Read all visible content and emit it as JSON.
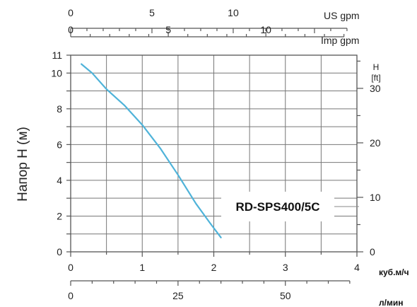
{
  "chart_data": {
    "type": "line",
    "ylabel": "Напор H (м)",
    "ylim": [
      0,
      11
    ],
    "yticks": [
      "0",
      "2",
      "4",
      "6",
      "8",
      "10"
    ],
    "y_top_label": "11",
    "xlim": [
      0,
      4
    ],
    "xticks": [
      "0",
      "1",
      "2",
      "3",
      "4"
    ],
    "x_unit": "куб.м/ч",
    "secondary_x_lpm": {
      "ticks": [
        "0",
        "25",
        "50"
      ],
      "values": [
        0,
        25,
        50
      ],
      "unit": "л/мин"
    },
    "top_x_usgpm": {
      "ticks": [
        "0",
        "5",
        "10"
      ],
      "values": [
        0,
        5,
        10
      ],
      "unit": "US gpm"
    },
    "top_x_impgpm": {
      "ticks": [
        "0",
        "5",
        "10"
      ],
      "values": [
        0,
        5,
        10
      ],
      "unit": "Imp gpm"
    },
    "right_y_ft": {
      "ticks": [
        "0",
        "10",
        "20",
        "30"
      ],
      "values": [
        0,
        10,
        20,
        30
      ],
      "unit_line1": "H",
      "unit_line2": "[ft]"
    },
    "grid": true,
    "series": [
      {
        "name": "RD-SPS400/5C",
        "color": "#4fb3d9",
        "x": [
          0.15,
          0.3,
          0.5,
          0.75,
          1.0,
          1.25,
          1.5,
          1.75,
          1.95,
          2.1
        ],
        "y": [
          10.5,
          10.0,
          9.1,
          8.2,
          7.1,
          5.8,
          4.3,
          2.7,
          1.6,
          0.8
        ]
      }
    ]
  }
}
